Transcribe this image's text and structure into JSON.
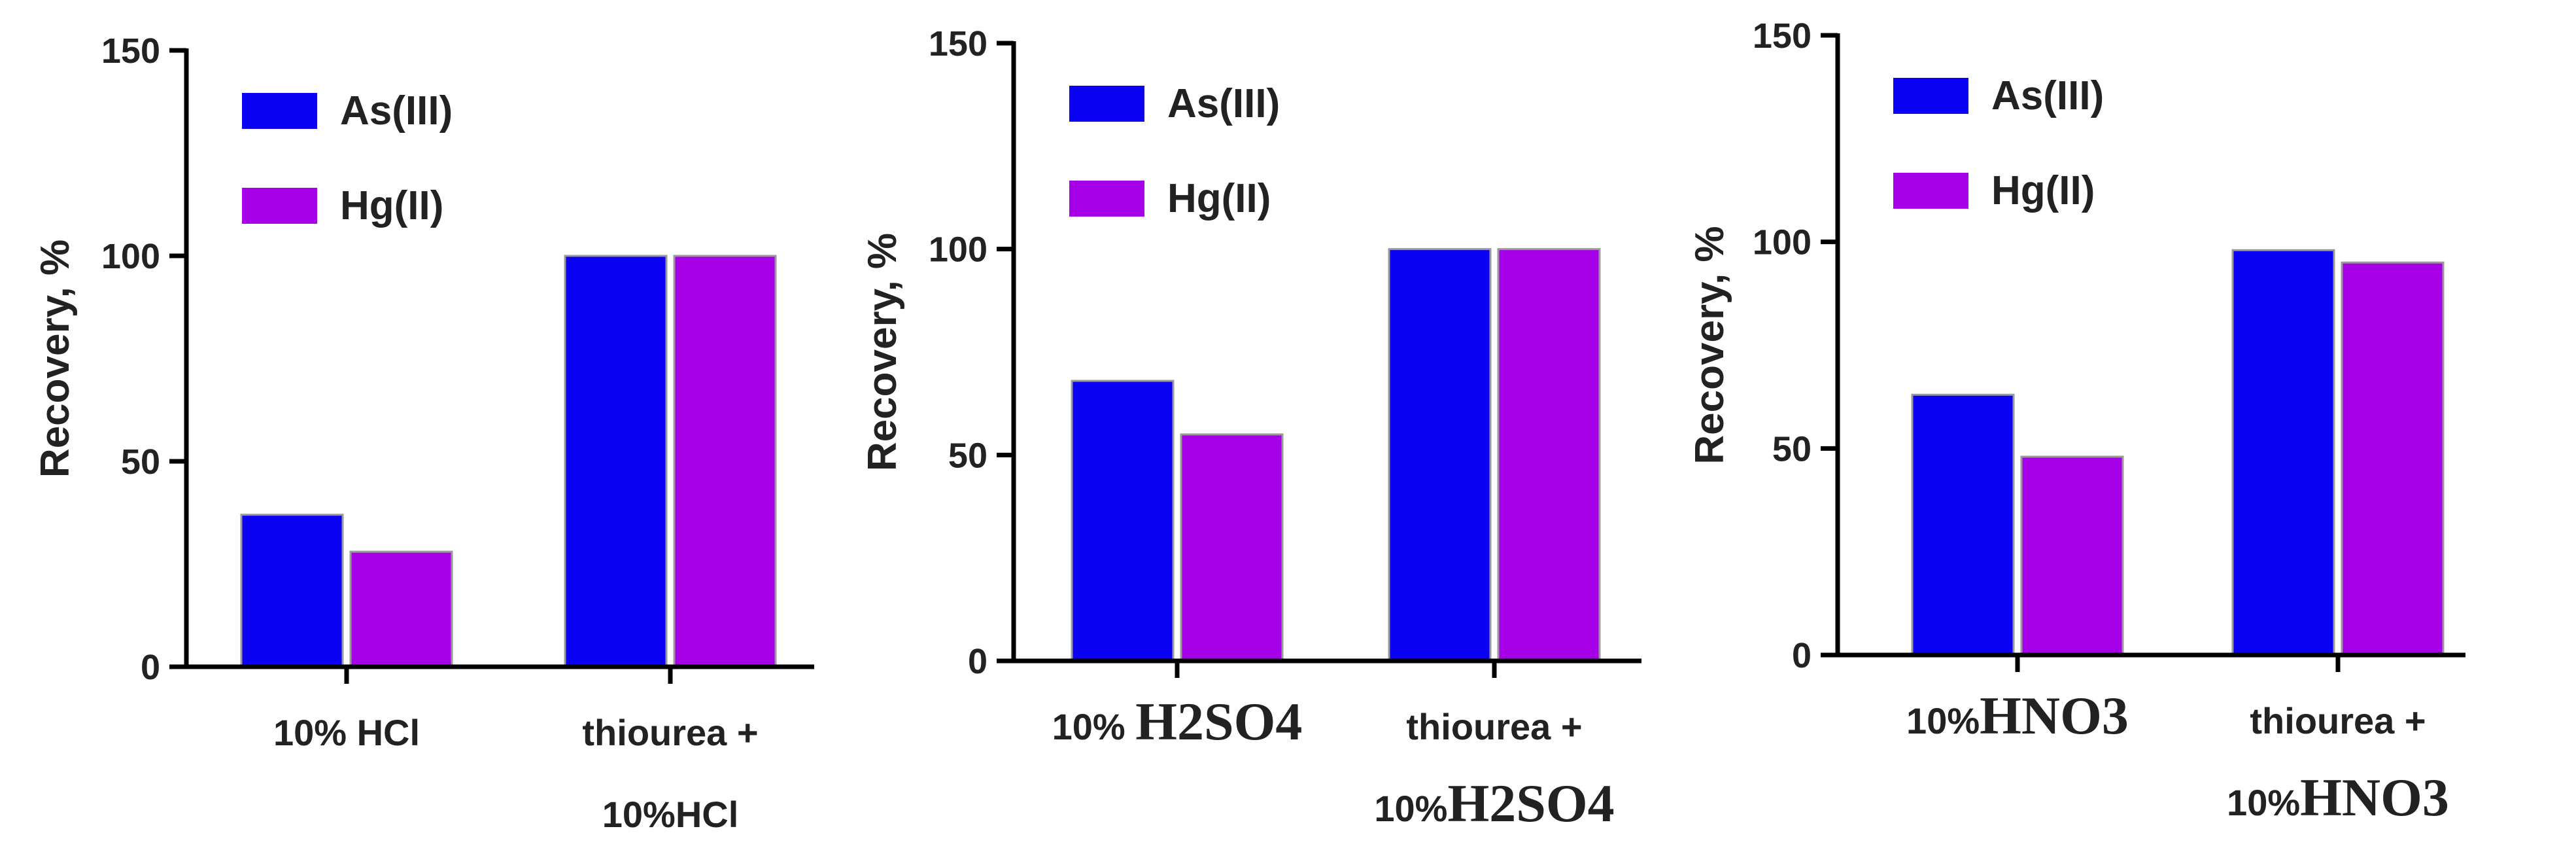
{
  "chart_data": [
    {
      "type": "bar",
      "ylabel": "Recovery, %",
      "ylim": [
        0,
        150
      ],
      "yticks": [
        "0",
        "50",
        "100",
        "150"
      ],
      "categories": [
        [
          "10% HCl"
        ],
        [
          "thiourea +",
          "10%HCl"
        ]
      ],
      "series": [
        {
          "name": "As(III)",
          "color": "#0a00f2",
          "values": [
            37,
            100
          ]
        },
        {
          "name": "Hg(II)",
          "color": "#a600e8",
          "values": [
            28,
            100
          ]
        }
      ],
      "legend": "top-left"
    },
    {
      "type": "bar",
      "ylabel": "Recovery, %",
      "ylim": [
        0,
        150
      ],
      "yticks": [
        "0",
        "50",
        "100",
        "150"
      ],
      "categories": [
        [
          "10% H2SO4"
        ],
        [
          "thiourea +",
          "10%H2SO4"
        ]
      ],
      "series": [
        {
          "name": "As(III)",
          "color": "#0a00f2",
          "values": [
            68,
            100
          ]
        },
        {
          "name": "Hg(II)",
          "color": "#a600e8",
          "values": [
            55,
            100
          ]
        }
      ],
      "legend": "top-left"
    },
    {
      "type": "bar",
      "ylabel": "Recovery, %",
      "ylim": [
        0,
        150
      ],
      "yticks": [
        "0",
        "50",
        "100",
        "150"
      ],
      "categories": [
        [
          "10%HNO3"
        ],
        [
          "thiourea +",
          "10%HNO3"
        ]
      ],
      "series": [
        {
          "name": "As(III)",
          "color": "#0a00f2",
          "values": [
            63,
            98
          ]
        },
        {
          "name": "Hg(II)",
          "color": "#a600e8",
          "values": [
            48,
            95
          ]
        }
      ],
      "legend": "top-left"
    }
  ]
}
